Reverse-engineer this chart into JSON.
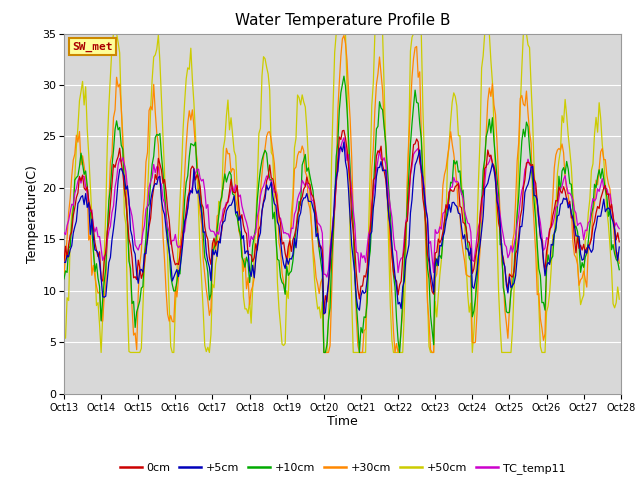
{
  "title": "Water Temperature Profile B",
  "xlabel": "Time",
  "ylabel": "Temperature(C)",
  "ylim": [
    0,
    35
  ],
  "series_colors": {
    "0cm": "#cc0000",
    "+5cm": "#0000bb",
    "+10cm": "#00aa00",
    "+30cm": "#ff8800",
    "+50cm": "#cccc00",
    "TC_temp11": "#cc00cc"
  },
  "annotation_text": "SW_met",
  "annotation_color": "#aa0000",
  "annotation_bg": "#ffff99",
  "tick_labels": [
    "Oct 13",
    "Oct 14",
    "Oct 15",
    "Oct 16",
    "Oct 17",
    "Oct 18",
    "Oct 19",
    "Oct 20",
    "Oct 21",
    "Oct 22",
    "Oct 23",
    "Oct 24",
    "Oct 25",
    "Oct 26",
    "Oct 27",
    "Oct 28"
  ],
  "yticks": [
    0,
    5,
    10,
    15,
    20,
    25,
    30,
    35
  ]
}
